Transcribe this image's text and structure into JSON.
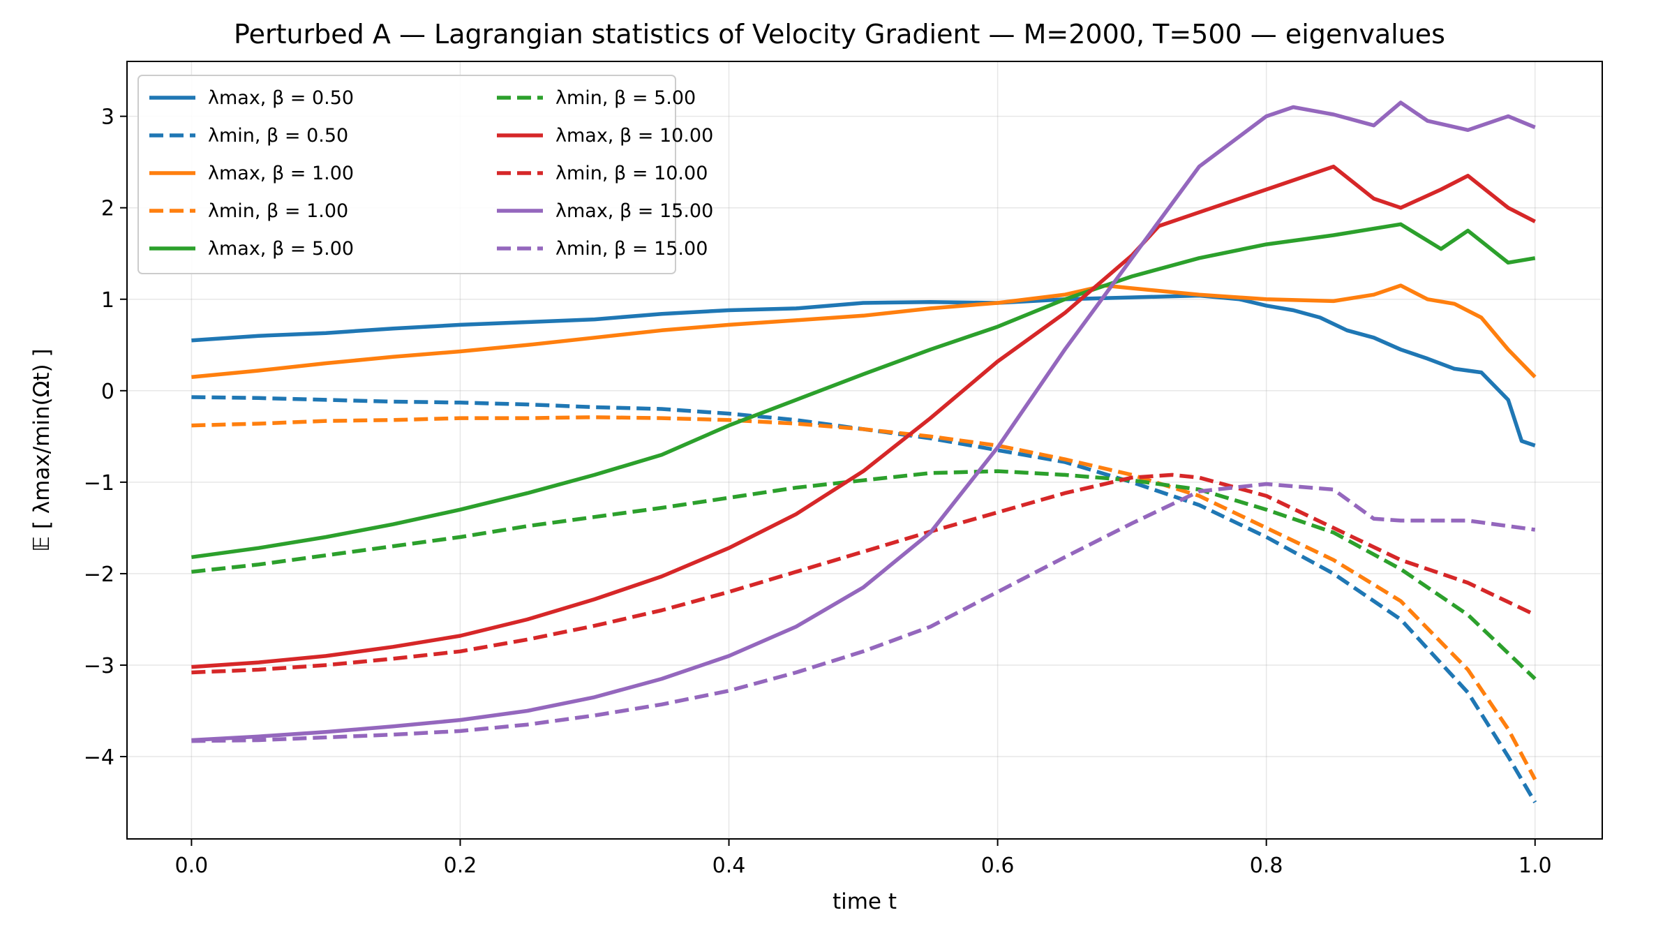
{
  "chart_data": {
    "type": "line",
    "title": "Perturbed A — Lagrangian statistics of Velocity Gradient — M=2000, T=500 — eigenvalues",
    "xlabel": "time t",
    "ylabel": "𝔼 [ λmax/min(Ωt) ]",
    "xlim": [
      -0.048,
      1.05
    ],
    "ylim": [
      -4.9,
      3.6
    ],
    "xticks": [
      0.0,
      0.2,
      0.4,
      0.6,
      0.8,
      1.0
    ],
    "xtick_labels": [
      "0.0",
      "0.2",
      "0.4",
      "0.6",
      "0.8",
      "1.0"
    ],
    "yticks": [
      -4,
      -3,
      -2,
      -1,
      0,
      1,
      2,
      3
    ],
    "ytick_labels": [
      "−4",
      "−3",
      "−2",
      "−1",
      "0",
      "1",
      "2",
      "3"
    ],
    "grid": true,
    "legend_position": "top-left",
    "series": [
      {
        "name": "λmax, β = 0.50",
        "color": "#1f77b4",
        "style": "solid",
        "x": [
          0,
          0.05,
          0.1,
          0.15,
          0.2,
          0.25,
          0.3,
          0.35,
          0.4,
          0.45,
          0.5,
          0.55,
          0.6,
          0.65,
          0.7,
          0.75,
          0.78,
          0.8,
          0.82,
          0.84,
          0.86,
          0.88,
          0.9,
          0.92,
          0.94,
          0.96,
          0.98,
          0.99,
          1.0
        ],
        "y": [
          0.55,
          0.6,
          0.63,
          0.68,
          0.72,
          0.75,
          0.78,
          0.84,
          0.88,
          0.9,
          0.96,
          0.97,
          0.96,
          1.0,
          1.02,
          1.04,
          1.0,
          0.93,
          0.88,
          0.8,
          0.66,
          0.58,
          0.45,
          0.35,
          0.24,
          0.2,
          -0.1,
          -0.55,
          -0.6
        ]
      },
      {
        "name": "λmin, β = 0.50",
        "color": "#1f77b4",
        "style": "dashed",
        "x": [
          0,
          0.05,
          0.1,
          0.15,
          0.2,
          0.25,
          0.3,
          0.35,
          0.4,
          0.45,
          0.5,
          0.55,
          0.6,
          0.65,
          0.7,
          0.75,
          0.8,
          0.85,
          0.9,
          0.95,
          0.98,
          1.0
        ],
        "y": [
          -0.07,
          -0.08,
          -0.1,
          -0.12,
          -0.13,
          -0.15,
          -0.18,
          -0.2,
          -0.25,
          -0.32,
          -0.42,
          -0.52,
          -0.65,
          -0.78,
          -1.0,
          -1.25,
          -1.6,
          -2.0,
          -2.5,
          -3.3,
          -4.0,
          -4.5
        ]
      },
      {
        "name": "λmax, β = 1.00",
        "color": "#ff7f0e",
        "style": "solid",
        "x": [
          0,
          0.05,
          0.1,
          0.15,
          0.2,
          0.25,
          0.3,
          0.35,
          0.4,
          0.45,
          0.5,
          0.55,
          0.6,
          0.65,
          0.68,
          0.7,
          0.75,
          0.8,
          0.85,
          0.88,
          0.9,
          0.92,
          0.94,
          0.96,
          0.98,
          1.0
        ],
        "y": [
          0.15,
          0.22,
          0.3,
          0.37,
          0.43,
          0.5,
          0.58,
          0.66,
          0.72,
          0.77,
          0.82,
          0.9,
          0.96,
          1.05,
          1.15,
          1.12,
          1.05,
          1.0,
          0.98,
          1.05,
          1.15,
          1.0,
          0.95,
          0.8,
          0.45,
          0.15
        ]
      },
      {
        "name": "λmin, β = 1.00",
        "color": "#ff7f0e",
        "style": "dashed",
        "x": [
          0,
          0.05,
          0.1,
          0.15,
          0.2,
          0.25,
          0.3,
          0.35,
          0.4,
          0.45,
          0.5,
          0.55,
          0.6,
          0.65,
          0.7,
          0.75,
          0.8,
          0.85,
          0.9,
          0.95,
          0.98,
          1.0
        ],
        "y": [
          -0.38,
          -0.36,
          -0.33,
          -0.32,
          -0.3,
          -0.3,
          -0.29,
          -0.3,
          -0.32,
          -0.36,
          -0.42,
          -0.5,
          -0.6,
          -0.75,
          -0.92,
          -1.15,
          -1.5,
          -1.85,
          -2.3,
          -3.05,
          -3.7,
          -4.25
        ]
      },
      {
        "name": "λmax, β = 5.00",
        "color": "#2ca02c",
        "style": "solid",
        "x": [
          0,
          0.05,
          0.1,
          0.15,
          0.2,
          0.25,
          0.3,
          0.35,
          0.4,
          0.45,
          0.5,
          0.55,
          0.6,
          0.65,
          0.7,
          0.75,
          0.8,
          0.85,
          0.9,
          0.93,
          0.95,
          0.98,
          1.0
        ],
        "y": [
          -1.82,
          -1.72,
          -1.6,
          -1.46,
          -1.3,
          -1.12,
          -0.92,
          -0.7,
          -0.38,
          -0.1,
          0.18,
          0.45,
          0.7,
          1.0,
          1.25,
          1.45,
          1.6,
          1.7,
          1.82,
          1.55,
          1.75,
          1.4,
          1.45
        ]
      },
      {
        "name": "λmin, β = 5.00",
        "color": "#2ca02c",
        "style": "dashed",
        "x": [
          0,
          0.05,
          0.1,
          0.15,
          0.2,
          0.25,
          0.3,
          0.35,
          0.4,
          0.45,
          0.5,
          0.55,
          0.6,
          0.65,
          0.7,
          0.75,
          0.8,
          0.85,
          0.9,
          0.95,
          1.0
        ],
        "y": [
          -1.98,
          -1.9,
          -1.8,
          -1.7,
          -1.6,
          -1.48,
          -1.38,
          -1.28,
          -1.17,
          -1.06,
          -0.98,
          -0.9,
          -0.88,
          -0.92,
          -0.98,
          -1.08,
          -1.3,
          -1.55,
          -1.95,
          -2.45,
          -3.15
        ]
      },
      {
        "name": "λmax, β = 10.00",
        "color": "#d62728",
        "style": "solid",
        "x": [
          0,
          0.05,
          0.1,
          0.15,
          0.2,
          0.25,
          0.3,
          0.35,
          0.4,
          0.45,
          0.5,
          0.55,
          0.6,
          0.65,
          0.7,
          0.72,
          0.75,
          0.8,
          0.85,
          0.88,
          0.9,
          0.93,
          0.95,
          0.98,
          1.0
        ],
        "y": [
          -3.02,
          -2.97,
          -2.9,
          -2.8,
          -2.68,
          -2.5,
          -2.28,
          -2.03,
          -1.72,
          -1.35,
          -0.88,
          -0.3,
          0.32,
          0.85,
          1.48,
          1.8,
          1.95,
          2.2,
          2.45,
          2.1,
          2.0,
          2.2,
          2.35,
          2.0,
          1.85
        ]
      },
      {
        "name": "λmin, β = 10.00",
        "color": "#d62728",
        "style": "dashed",
        "x": [
          0,
          0.05,
          0.1,
          0.15,
          0.2,
          0.25,
          0.3,
          0.35,
          0.4,
          0.45,
          0.5,
          0.55,
          0.6,
          0.65,
          0.7,
          0.73,
          0.75,
          0.8,
          0.85,
          0.9,
          0.95,
          1.0
        ],
        "y": [
          -3.08,
          -3.05,
          -3.0,
          -2.93,
          -2.85,
          -2.72,
          -2.57,
          -2.4,
          -2.2,
          -1.98,
          -1.76,
          -1.54,
          -1.33,
          -1.12,
          -0.95,
          -0.92,
          -0.95,
          -1.15,
          -1.5,
          -1.85,
          -2.1,
          -2.45
        ]
      },
      {
        "name": "λmax, β = 15.00",
        "color": "#9467bd",
        "style": "solid",
        "x": [
          0,
          0.05,
          0.1,
          0.15,
          0.2,
          0.25,
          0.3,
          0.35,
          0.4,
          0.45,
          0.5,
          0.55,
          0.6,
          0.65,
          0.7,
          0.75,
          0.8,
          0.82,
          0.85,
          0.88,
          0.9,
          0.92,
          0.95,
          0.98,
          1.0
        ],
        "y": [
          -3.82,
          -3.78,
          -3.73,
          -3.67,
          -3.6,
          -3.5,
          -3.35,
          -3.15,
          -2.9,
          -2.58,
          -2.15,
          -1.55,
          -0.62,
          0.45,
          1.45,
          2.45,
          3.0,
          3.1,
          3.02,
          2.9,
          3.15,
          2.95,
          2.85,
          3.0,
          2.88
        ]
      },
      {
        "name": "λmin, β = 15.00",
        "color": "#9467bd",
        "style": "dashed",
        "x": [
          0,
          0.05,
          0.1,
          0.15,
          0.2,
          0.25,
          0.3,
          0.35,
          0.4,
          0.45,
          0.5,
          0.55,
          0.6,
          0.65,
          0.7,
          0.75,
          0.8,
          0.85,
          0.88,
          0.9,
          0.95,
          1.0
        ],
        "y": [
          -3.83,
          -3.82,
          -3.79,
          -3.76,
          -3.72,
          -3.65,
          -3.55,
          -3.43,
          -3.28,
          -3.08,
          -2.85,
          -2.58,
          -2.2,
          -1.82,
          -1.45,
          -1.1,
          -1.02,
          -1.08,
          -1.4,
          -1.42,
          -1.42,
          -1.52
        ]
      }
    ]
  }
}
